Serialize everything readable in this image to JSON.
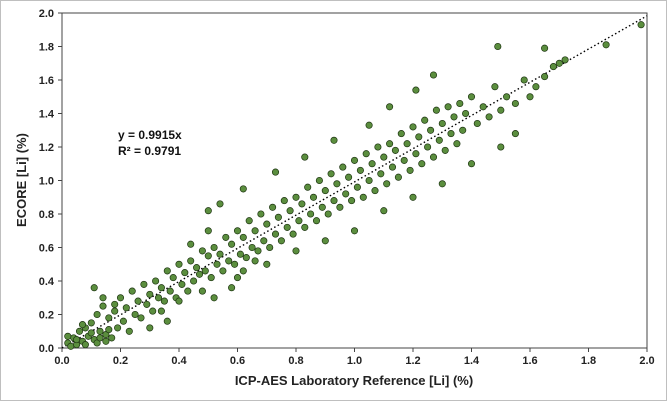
{
  "chart_data": {
    "type": "scatter",
    "title": "",
    "xlabel": "ICP-AES Laboratory Reference [Li] (%)",
    "ylabel": "ECORE [Li] (%)",
    "xlim": [
      0,
      2.0
    ],
    "ylim": [
      0,
      2.0
    ],
    "xticks": [
      "0.0",
      "0.2",
      "0.4",
      "0.6",
      "0.8",
      "1.0",
      "1.2",
      "1.4",
      "1.6",
      "1.8",
      "2.0"
    ],
    "yticks": [
      "0.0",
      "0.2",
      "0.4",
      "0.6",
      "0.8",
      "1.0",
      "1.2",
      "1.4",
      "1.6",
      "1.8",
      "2.0"
    ],
    "grid": false,
    "legend": "none",
    "point_color": "#5b8e3e",
    "point_edge_color": "#1e3512",
    "trendline": {
      "slope": 0.9915,
      "intercept": 0,
      "style": "dotted",
      "color": "#000000"
    },
    "annotation": {
      "equation": "y = 0.9915x",
      "r_squared": "R² = 0.9791"
    },
    "points": [
      [
        0.02,
        0.03
      ],
      [
        0.03,
        0.01
      ],
      [
        0.04,
        0.06
      ],
      [
        0.05,
        0.02
      ],
      [
        0.06,
        0.1
      ],
      [
        0.07,
        0.04
      ],
      [
        0.08,
        0.12
      ],
      [
        0.08,
        0.02
      ],
      [
        0.09,
        0.07
      ],
      [
        0.1,
        0.15
      ],
      [
        0.11,
        0.05
      ],
      [
        0.12,
        0.2
      ],
      [
        0.12,
        0.03
      ],
      [
        0.13,
        0.1
      ],
      [
        0.14,
        0.25
      ],
      [
        0.15,
        0.08
      ],
      [
        0.16,
        0.18
      ],
      [
        0.17,
        0.06
      ],
      [
        0.18,
        0.22
      ],
      [
        0.19,
        0.12
      ],
      [
        0.2,
        0.3
      ],
      [
        0.21,
        0.16
      ],
      [
        0.22,
        0.24
      ],
      [
        0.23,
        0.1
      ],
      [
        0.24,
        0.34
      ],
      [
        0.25,
        0.2
      ],
      [
        0.26,
        0.28
      ],
      [
        0.27,
        0.18
      ],
      [
        0.28,
        0.38
      ],
      [
        0.29,
        0.26
      ],
      [
        0.3,
        0.32
      ],
      [
        0.31,
        0.22
      ],
      [
        0.32,
        0.4
      ],
      [
        0.33,
        0.3
      ],
      [
        0.34,
        0.36
      ],
      [
        0.35,
        0.28
      ],
      [
        0.36,
        0.46
      ],
      [
        0.37,
        0.34
      ],
      [
        0.38,
        0.42
      ],
      [
        0.39,
        0.3
      ],
      [
        0.4,
        0.5
      ],
      [
        0.41,
        0.38
      ],
      [
        0.42,
        0.45
      ],
      [
        0.43,
        0.34
      ],
      [
        0.44,
        0.52
      ],
      [
        0.45,
        0.4
      ],
      [
        0.46,
        0.48
      ],
      [
        0.47,
        0.44
      ],
      [
        0.48,
        0.58
      ],
      [
        0.49,
        0.46
      ],
      [
        0.5,
        0.55
      ],
      [
        0.5,
        0.82
      ],
      [
        0.51,
        0.42
      ],
      [
        0.52,
        0.6
      ],
      [
        0.53,
        0.5
      ],
      [
        0.54,
        0.56
      ],
      [
        0.55,
        0.46
      ],
      [
        0.56,
        0.66
      ],
      [
        0.57,
        0.52
      ],
      [
        0.58,
        0.62
      ],
      [
        0.59,
        0.5
      ],
      [
        0.6,
        0.7
      ],
      [
        0.61,
        0.56
      ],
      [
        0.62,
        0.66
      ],
      [
        0.63,
        0.54
      ],
      [
        0.64,
        0.76
      ],
      [
        0.65,
        0.6
      ],
      [
        0.66,
        0.7
      ],
      [
        0.67,
        0.58
      ],
      [
        0.68,
        0.8
      ],
      [
        0.69,
        0.64
      ],
      [
        0.7,
        0.74
      ],
      [
        0.71,
        0.6
      ],
      [
        0.72,
        0.84
      ],
      [
        0.73,
        0.68
      ],
      [
        0.74,
        0.78
      ],
      [
        0.75,
        0.64
      ],
      [
        0.76,
        0.88
      ],
      [
        0.77,
        0.72
      ],
      [
        0.78,
        0.82
      ],
      [
        0.79,
        0.68
      ],
      [
        0.8,
        0.9
      ],
      [
        0.81,
        0.76
      ],
      [
        0.82,
        0.86
      ],
      [
        0.83,
        0.72
      ],
      [
        0.84,
        0.96
      ],
      [
        0.85,
        0.8
      ],
      [
        0.86,
        0.9
      ],
      [
        0.87,
        0.76
      ],
      [
        0.88,
        1.0
      ],
      [
        0.89,
        0.84
      ],
      [
        0.9,
        0.94
      ],
      [
        0.91,
        0.8
      ],
      [
        0.92,
        1.04
      ],
      [
        0.93,
        0.88
      ],
      [
        0.94,
        0.98
      ],
      [
        0.95,
        0.84
      ],
      [
        0.96,
        1.08
      ],
      [
        0.97,
        0.92
      ],
      [
        0.98,
        1.02
      ],
      [
        0.99,
        0.88
      ],
      [
        1.0,
        1.12
      ],
      [
        1.01,
        0.96
      ],
      [
        1.02,
        1.06
      ],
      [
        1.03,
        0.9
      ],
      [
        1.04,
        1.16
      ],
      [
        1.05,
        1.0
      ],
      [
        1.06,
        1.1
      ],
      [
        1.07,
        0.94
      ],
      [
        1.08,
        1.2
      ],
      [
        1.09,
        1.04
      ],
      [
        1.1,
        1.14
      ],
      [
        1.11,
        0.98
      ],
      [
        1.12,
        1.22
      ],
      [
        1.13,
        1.08
      ],
      [
        1.14,
        1.18
      ],
      [
        1.15,
        1.02
      ],
      [
        1.16,
        1.28
      ],
      [
        1.17,
        1.12
      ],
      [
        1.18,
        1.22
      ],
      [
        1.19,
        1.06
      ],
      [
        1.2,
        1.32
      ],
      [
        1.21,
        1.16
      ],
      [
        1.22,
        1.26
      ],
      [
        1.23,
        1.1
      ],
      [
        1.24,
        1.36
      ],
      [
        1.25,
        1.2
      ],
      [
        1.26,
        1.3
      ],
      [
        1.27,
        1.14
      ],
      [
        1.28,
        1.42
      ],
      [
        1.29,
        1.24
      ],
      [
        1.3,
        1.34
      ],
      [
        1.31,
        1.18
      ],
      [
        1.32,
        1.44
      ],
      [
        1.33,
        1.28
      ],
      [
        1.34,
        1.38
      ],
      [
        1.35,
        1.22
      ],
      [
        1.36,
        1.46
      ],
      [
        1.37,
        1.3
      ],
      [
        1.38,
        1.4
      ],
      [
        1.4,
        1.5
      ],
      [
        1.42,
        1.34
      ],
      [
        1.44,
        1.44
      ],
      [
        1.46,
        1.38
      ],
      [
        1.48,
        1.56
      ],
      [
        1.5,
        1.42
      ],
      [
        1.52,
        1.5
      ],
      [
        1.55,
        1.46
      ],
      [
        1.58,
        1.6
      ],
      [
        1.6,
        1.5
      ],
      [
        1.62,
        1.56
      ],
      [
        1.65,
        1.62
      ],
      [
        1.68,
        1.68
      ],
      [
        1.7,
        1.7
      ],
      [
        1.72,
        1.72
      ],
      [
        1.86,
        1.81
      ],
      [
        1.98,
        1.93
      ],
      [
        1.49,
        1.8
      ],
      [
        1.65,
        1.79
      ],
      [
        1.27,
        1.63
      ],
      [
        1.21,
        1.54
      ],
      [
        1.12,
        1.44
      ],
      [
        1.05,
        1.33
      ],
      [
        0.93,
        1.24
      ],
      [
        0.83,
        1.14
      ],
      [
        0.73,
        1.05
      ],
      [
        0.62,
        0.95
      ],
      [
        0.54,
        0.86
      ],
      [
        0.5,
        0.7
      ],
      [
        0.44,
        0.62
      ],
      [
        0.7,
        0.5
      ],
      [
        0.8,
        0.58
      ],
      [
        0.9,
        0.64
      ],
      [
        1.0,
        0.7
      ],
      [
        1.1,
        0.82
      ],
      [
        1.2,
        0.9
      ],
      [
        1.3,
        0.98
      ],
      [
        1.4,
        1.1
      ],
      [
        1.5,
        1.2
      ],
      [
        1.55,
        1.28
      ],
      [
        0.34,
        0.22
      ],
      [
        0.3,
        0.12
      ],
      [
        0.36,
        0.16
      ],
      [
        0.4,
        0.28
      ],
      [
        0.48,
        0.34
      ],
      [
        0.52,
        0.3
      ],
      [
        0.6,
        0.42
      ],
      [
        0.58,
        0.36
      ],
      [
        0.62,
        0.46
      ],
      [
        0.66,
        0.52
      ],
      [
        0.11,
        0.36
      ],
      [
        0.07,
        0.14
      ],
      [
        0.14,
        0.3
      ],
      [
        0.18,
        0.26
      ],
      [
        0.02,
        0.07
      ],
      [
        0.05,
        0.05
      ],
      [
        0.1,
        0.09
      ],
      [
        0.13,
        0.06
      ],
      [
        0.15,
        0.04
      ],
      [
        0.16,
        0.11
      ]
    ]
  }
}
